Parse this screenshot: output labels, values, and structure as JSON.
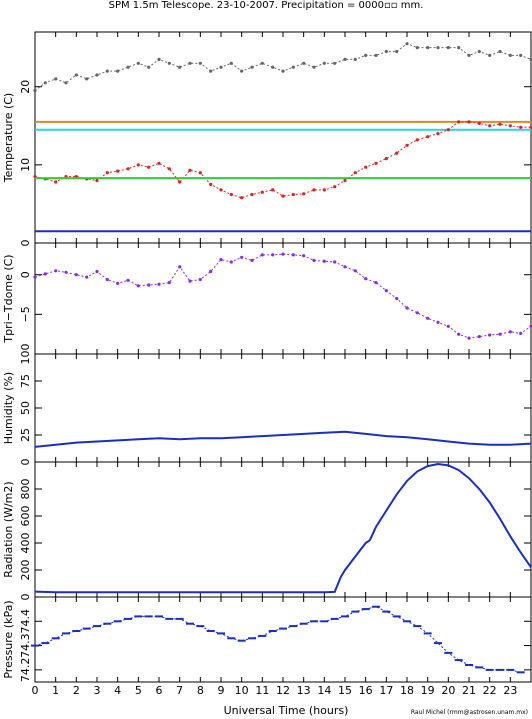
{
  "title": "SPM 1.5m Telescope. 23-10-2007. Precipitation = 0000▫▫ mm.",
  "xlabel": "Universal Time (hours)",
  "credit": "Raul Michel (rmm@astrosen.unam.mx)",
  "x_ticks": [
    "0",
    "1",
    "2",
    "3",
    "4",
    "5",
    "6",
    "7",
    "8",
    "9",
    "10",
    "11",
    "12",
    "13",
    "14",
    "15",
    "16",
    "17",
    "18",
    "19",
    "20",
    "21",
    "22",
    "23"
  ],
  "colors": {
    "gray": "#666666",
    "red": "#dd2020",
    "orange": "#d98a2a",
    "cyan": "#22d8e8",
    "green": "#33cc33",
    "blue": "#1a2fbf",
    "purple": "#8a2be2"
  },
  "chart_data": [
    {
      "type": "line",
      "id": "temperature",
      "ylabel": "Temperature (C)",
      "xlim": [
        0,
        24
      ],
      "ylim": [
        0,
        27
      ],
      "y_ticks": [
        0,
        10,
        20
      ],
      "y_tick_labels": [
        "0",
        "10",
        "20"
      ],
      "series": [
        {
          "color": "gray",
          "style": "dots",
          "x": [
            0,
            0.5,
            1,
            1.5,
            2,
            2.5,
            3,
            3.5,
            4,
            4.5,
            5,
            5.5,
            6,
            6.5,
            7,
            7.5,
            8,
            8.5,
            9,
            9.5,
            10,
            10.5,
            11,
            11.5,
            12,
            12.5,
            13,
            13.5,
            14,
            14.5,
            15,
            15.5,
            16,
            16.5,
            17,
            17.5,
            18,
            18.5,
            19,
            19.5,
            20,
            20.5,
            21,
            21.5,
            22,
            22.5,
            23,
            23.5,
            24
          ],
          "y": [
            19.5,
            20.5,
            21,
            20.5,
            21.5,
            21,
            21.5,
            22,
            22,
            22.5,
            23,
            22.5,
            23.5,
            23,
            22.5,
            23,
            23,
            22,
            22.5,
            23,
            22,
            22.5,
            23,
            22.5,
            22,
            22.5,
            23,
            22.5,
            23,
            23,
            23.5,
            23.5,
            24,
            24,
            24.5,
            24.5,
            25.5,
            25,
            25,
            25,
            25,
            25,
            24,
            24.5,
            24,
            24.5,
            24,
            24,
            23.5
          ]
        },
        {
          "color": "orange",
          "style": "line",
          "x": [
            0,
            24
          ],
          "y": [
            15.5,
            15.5
          ]
        },
        {
          "color": "cyan",
          "style": "line",
          "x": [
            0,
            24
          ],
          "y": [
            14.5,
            14.5
          ]
        },
        {
          "color": "red",
          "style": "dots",
          "x": [
            0,
            0.5,
            1,
            1.5,
            2,
            2.5,
            3,
            3.5,
            4,
            4.5,
            5,
            5.5,
            6,
            6.5,
            7,
            7.5,
            8,
            8.5,
            9,
            9.5,
            10,
            10.5,
            11,
            11.5,
            12,
            12.5,
            13,
            13.5,
            14,
            14.5,
            15,
            15.5,
            16,
            16.5,
            17,
            17.5,
            18,
            18.5,
            19,
            19.5,
            20,
            20.5,
            21,
            21.5,
            22,
            22.5,
            23,
            23.5,
            24
          ],
          "y": [
            8.5,
            8.2,
            7.8,
            8.5,
            8.5,
            8.2,
            8,
            9,
            9.2,
            9.5,
            10,
            9.7,
            10.2,
            9.5,
            7.8,
            9.3,
            9,
            7.5,
            6.8,
            6.2,
            5.8,
            6.2,
            6.5,
            6.8,
            6,
            6.2,
            6.3,
            6.8,
            6.8,
            7.2,
            8,
            9,
            9.7,
            10.2,
            10.8,
            11.5,
            12.5,
            13.2,
            13.6,
            14,
            14.5,
            15.5,
            15.5,
            15.3,
            15,
            15.2,
            15,
            14.8,
            14.8
          ]
        },
        {
          "color": "green",
          "style": "line",
          "x": [
            0,
            24
          ],
          "y": [
            8.3,
            8.3
          ]
        },
        {
          "color": "blue",
          "style": "line",
          "x": [
            0,
            24
          ],
          "y": [
            1.5,
            1.5
          ]
        }
      ]
    },
    {
      "type": "scatter",
      "id": "tdiff",
      "ylabel": "Tpri−Tdome (C)",
      "xlim": [
        0,
        24
      ],
      "ylim": [
        -10,
        4
      ],
      "y_ticks": [
        0,
        -5
      ],
      "y_tick_labels": [
        "0",
        "−5"
      ],
      "series": [
        {
          "color": "purple",
          "style": "dots",
          "x": [
            0,
            0.5,
            1,
            1.5,
            2,
            2.5,
            3,
            3.5,
            4,
            4.5,
            5,
            5.5,
            6,
            6.5,
            7,
            7.5,
            8,
            8.5,
            9,
            9.5,
            10,
            10.5,
            11,
            11.5,
            12,
            12.5,
            13,
            13.5,
            14,
            14.5,
            15,
            15.5,
            16,
            16.5,
            17,
            17.5,
            18,
            18.5,
            19,
            19.5,
            20,
            20.5,
            21,
            21.5,
            22,
            22.5,
            23,
            23.5,
            24
          ],
          "y": [
            -0.3,
            0.1,
            0.5,
            0.3,
            0,
            -0.3,
            0.4,
            -0.6,
            -1.1,
            -0.7,
            -1.4,
            -1.3,
            -1.2,
            -1.0,
            1.0,
            -0.8,
            -0.6,
            0.4,
            1.9,
            1.6,
            2.2,
            1.8,
            2.5,
            2.5,
            2.6,
            2.5,
            2.4,
            1.8,
            1.7,
            1.6,
            1.0,
            0.5,
            -0.5,
            -1.0,
            -2.0,
            -3.0,
            -4.2,
            -4.8,
            -5.5,
            -6.0,
            -6.5,
            -7.5,
            -8.0,
            -7.8,
            -7.6,
            -7.5,
            -7.2,
            -7.4,
            -6.5
          ]
        }
      ]
    },
    {
      "type": "line",
      "id": "humidity",
      "ylabel": "Humidity (%)",
      "xlim": [
        0,
        24
      ],
      "ylim": [
        0,
        100
      ],
      "y_ticks": [
        0,
        25,
        50,
        75,
        100
      ],
      "y_tick_labels": [
        "0",
        "25",
        "50",
        "75",
        "100"
      ],
      "series": [
        {
          "color": "blue",
          "style": "line",
          "x": [
            0,
            1,
            2,
            3,
            4,
            5,
            6,
            7,
            8,
            9,
            10,
            11,
            12,
            13,
            14,
            15,
            16,
            17,
            18,
            19,
            20,
            21,
            22,
            23,
            24
          ],
          "y": [
            14,
            16,
            18,
            19,
            20,
            21,
            22,
            21,
            22,
            22,
            23,
            24,
            25,
            26,
            27,
            28,
            26,
            24,
            23,
            21,
            19,
            17,
            16,
            16,
            17
          ]
        }
      ]
    },
    {
      "type": "line",
      "id": "radiation",
      "ylabel": "Radiation (W/m2)",
      "xlim": [
        0,
        24
      ],
      "ylim": [
        0,
        1000
      ],
      "y_ticks": [
        0,
        200,
        400,
        600,
        800
      ],
      "y_tick_labels": [
        "0",
        "200",
        "400",
        "600",
        "800"
      ],
      "series": [
        {
          "color": "blue",
          "style": "line",
          "x": [
            0,
            1,
            2,
            3,
            4,
            5,
            6,
            7,
            8,
            9,
            10,
            11,
            12,
            13,
            14,
            14.5,
            14.8,
            15,
            15.5,
            16,
            16.2,
            16.5,
            17,
            17.5,
            18,
            18.5,
            19,
            19.5,
            20,
            20.5,
            21,
            21.5,
            22,
            22.5,
            23,
            23.5,
            24
          ],
          "y": [
            40,
            35,
            35,
            35,
            35,
            35,
            35,
            35,
            35,
            35,
            35,
            35,
            35,
            35,
            35,
            38,
            150,
            200,
            300,
            400,
            420,
            520,
            640,
            760,
            860,
            930,
            970,
            985,
            975,
            940,
            880,
            800,
            700,
            580,
            450,
            330,
            220
          ]
        }
      ]
    },
    {
      "type": "scatter",
      "id": "pressure",
      "ylabel": "Pressure (kPa)",
      "xlim": [
        0,
        24
      ],
      "ylim": [
        74.15,
        74.5
      ],
      "y_ticks": [
        74.2,
        74.3,
        74.4
      ],
      "y_tick_labels": [
        "74.2",
        "74.3",
        "74.4"
      ],
      "series": [
        {
          "color": "blue",
          "style": "dots",
          "x": [
            0,
            0.5,
            1,
            1.5,
            2,
            2.5,
            3,
            3.5,
            4,
            4.5,
            5,
            5.5,
            6,
            6.5,
            7,
            7.5,
            8,
            8.5,
            9,
            9.5,
            10,
            10.5,
            11,
            11.5,
            12,
            12.5,
            13,
            13.5,
            14,
            14.5,
            15,
            15.5,
            16,
            16.5,
            17,
            17.5,
            18,
            18.5,
            19,
            19.5,
            20,
            20.5,
            21,
            21.5,
            22,
            22.5,
            23,
            23.5
          ],
          "y": [
            74.3,
            74.31,
            74.33,
            74.35,
            74.36,
            74.37,
            74.38,
            74.39,
            74.4,
            74.41,
            74.42,
            74.42,
            74.42,
            74.41,
            74.41,
            74.39,
            74.38,
            74.36,
            74.35,
            74.33,
            74.32,
            74.33,
            74.34,
            74.36,
            74.37,
            74.38,
            74.39,
            74.4,
            74.4,
            74.41,
            74.42,
            74.44,
            74.45,
            74.46,
            74.44,
            74.42,
            74.4,
            74.38,
            74.35,
            74.31,
            74.27,
            74.24,
            74.22,
            74.21,
            74.2,
            74.2,
            74.2,
            74.19
          ]
        }
      ]
    }
  ]
}
